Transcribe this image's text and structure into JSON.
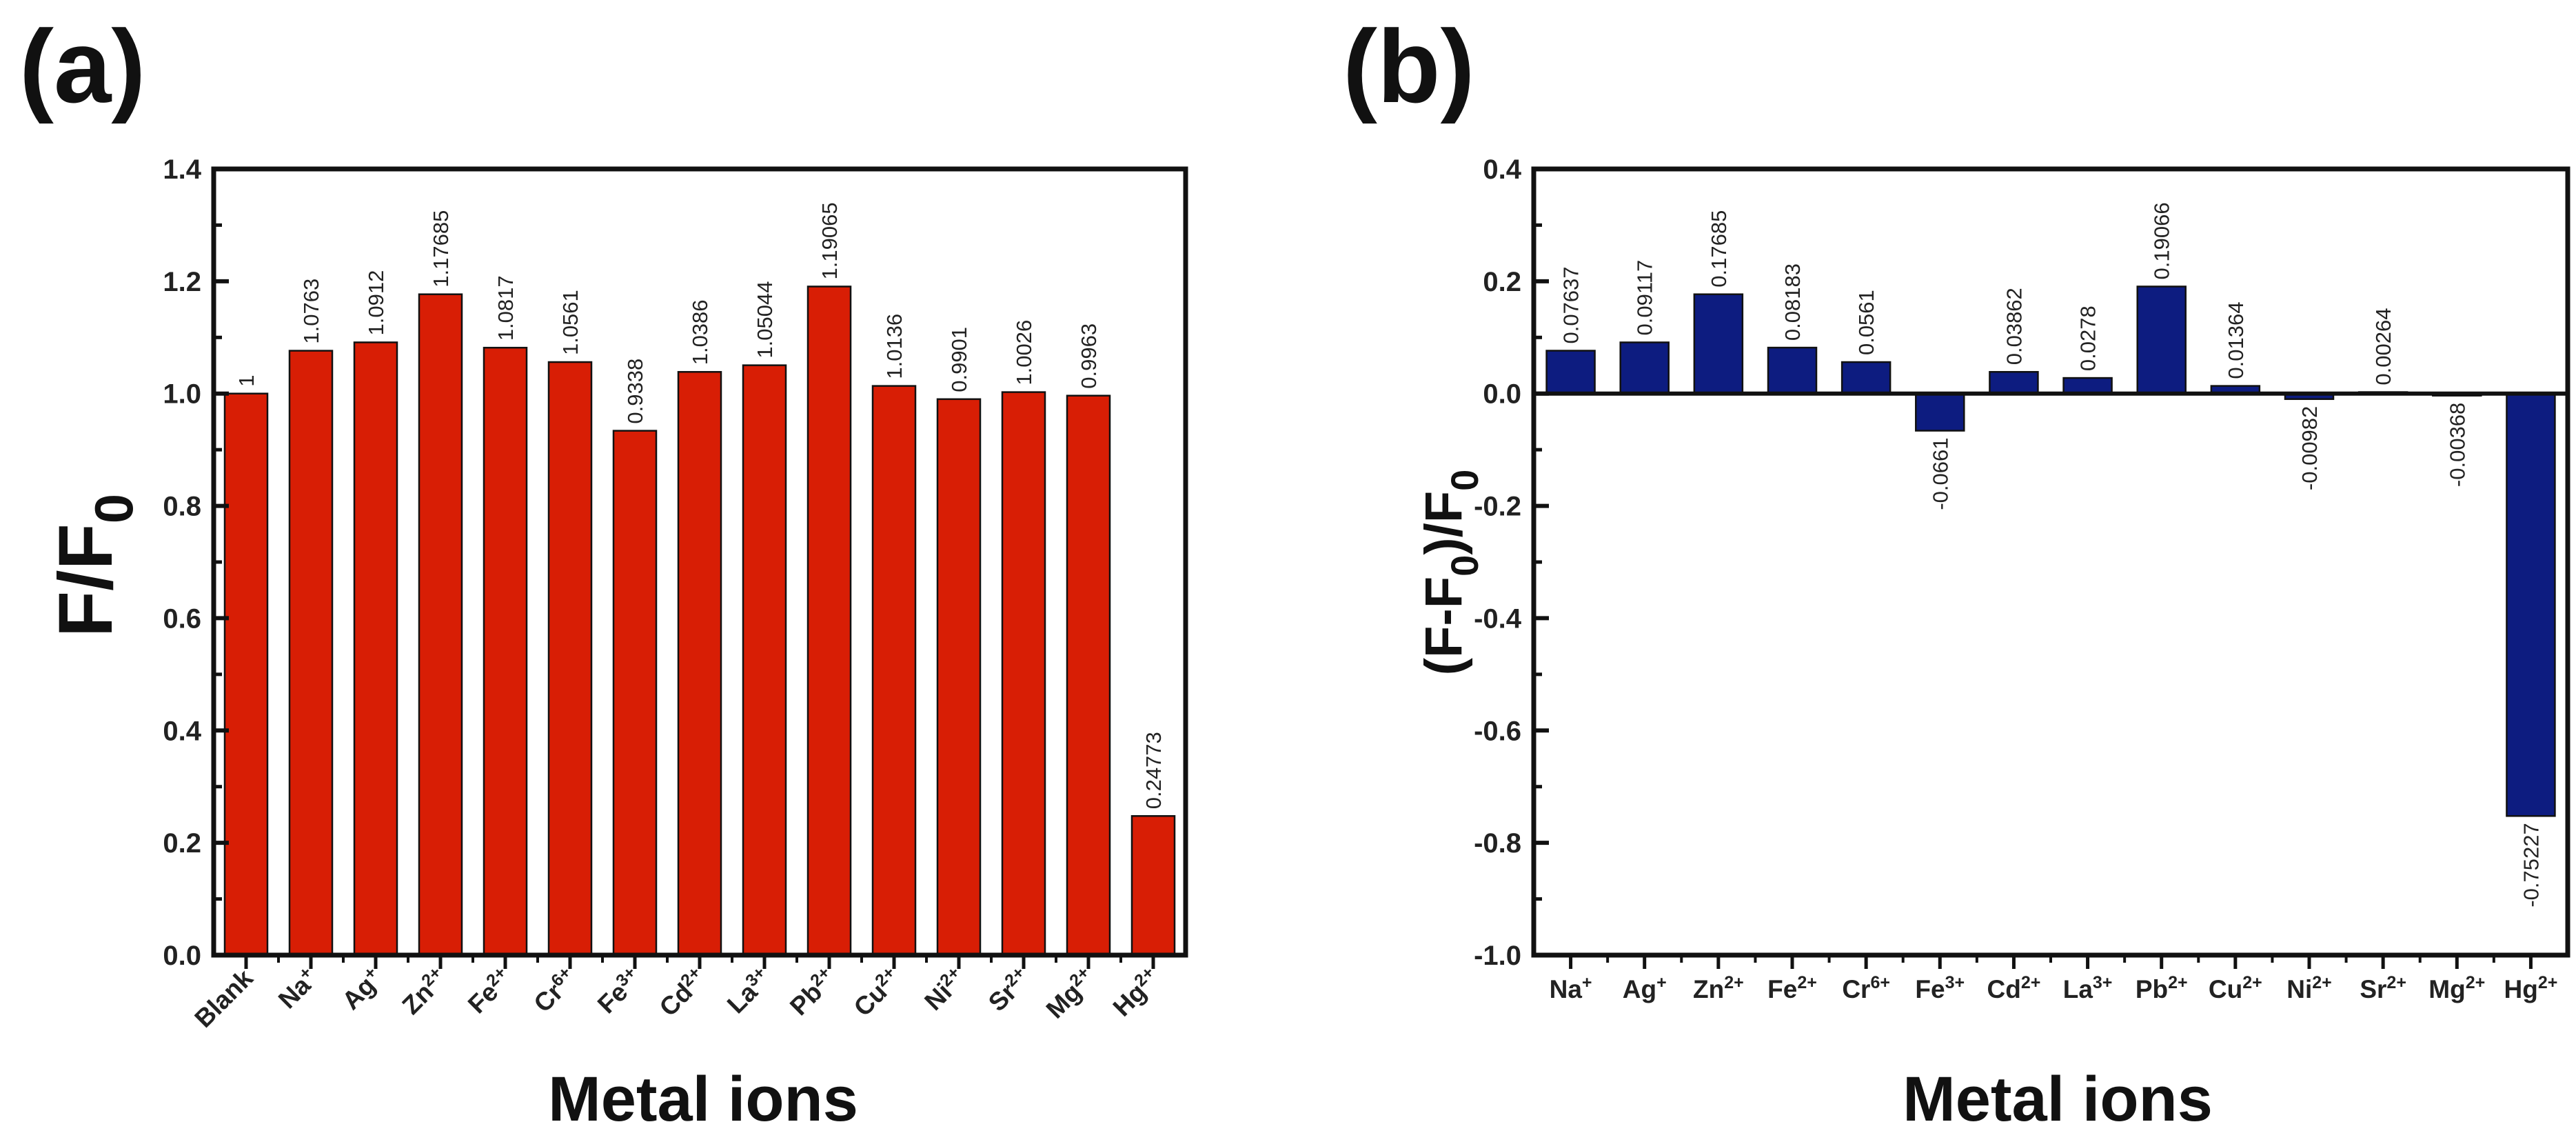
{
  "chart_data": [
    {
      "panel_label": "(a)",
      "type": "bar",
      "color": "#D81E05",
      "categories": [
        {
          "main": "Blank",
          "sup": ""
        },
        {
          "main": "Na",
          "sup": "+"
        },
        {
          "main": "Ag",
          "sup": "+"
        },
        {
          "main": "Zn",
          "sup": "2+"
        },
        {
          "main": "Fe",
          "sup": "2+"
        },
        {
          "main": "Cr",
          "sup": "6+"
        },
        {
          "main": "Fe",
          "sup": "3+"
        },
        {
          "main": "Cd",
          "sup": "2+"
        },
        {
          "main": "La",
          "sup": "3+"
        },
        {
          "main": "Pb",
          "sup": "2+"
        },
        {
          "main": "Cu",
          "sup": "2+"
        },
        {
          "main": "Ni",
          "sup": "2+"
        },
        {
          "main": "Sr",
          "sup": "2+"
        },
        {
          "main": "Mg",
          "sup": "2+"
        },
        {
          "main": "Hg",
          "sup": "2+"
        }
      ],
      "values": [
        1,
        1.0763,
        1.0912,
        1.17685,
        1.0817,
        1.0561,
        0.9338,
        1.0386,
        1.05044,
        1.19065,
        1.0136,
        0.9901,
        1.0026,
        0.9963,
        0.24773
      ],
      "value_labels": [
        "1",
        "1.0763",
        "1.0912",
        "1.17685",
        "1.0817",
        "1.0561",
        "0.9338",
        "1.0386",
        "1.05044",
        "1.19065",
        "1.0136",
        "0.9901",
        "1.0026",
        "0.9963",
        "0.24773"
      ],
      "ylim": [
        0.0,
        1.4
      ],
      "yticks": [
        "0.0",
        "0.2",
        "0.4",
        "0.6",
        "0.8",
        "1.0",
        "1.2",
        "1.4"
      ],
      "ylabel": {
        "main": "F/F",
        "sub": "0"
      },
      "xlabel": "Metal ions"
    },
    {
      "panel_label": "(b)",
      "type": "bar",
      "color": "#0D1C80",
      "categories": [
        {
          "main": "Na",
          "sup": "+"
        },
        {
          "main": "Ag",
          "sup": "+"
        },
        {
          "main": "Zn",
          "sup": "2+"
        },
        {
          "main": "Fe",
          "sup": "2+"
        },
        {
          "main": "Cr",
          "sup": "6+"
        },
        {
          "main": "Fe",
          "sup": "3+"
        },
        {
          "main": "Cd",
          "sup": "2+"
        },
        {
          "main": "La",
          "sup": "3+"
        },
        {
          "main": "Pb",
          "sup": "2+"
        },
        {
          "main": "Cu",
          "sup": "2+"
        },
        {
          "main": "Ni",
          "sup": "2+"
        },
        {
          "main": "Sr",
          "sup": "2+"
        },
        {
          "main": "Mg",
          "sup": "2+"
        },
        {
          "main": "Hg",
          "sup": "2+"
        }
      ],
      "values": [
        0.07637,
        0.09117,
        0.17685,
        0.08183,
        0.0561,
        -0.0661,
        0.03862,
        0.0278,
        0.19066,
        0.01364,
        -0.00982,
        0.00264,
        -0.00368,
        -0.75227
      ],
      "value_labels": [
        "0.07637",
        "0.09117",
        "0.17685",
        "0.08183",
        "0.0561",
        "-0.0661",
        "0.03862",
        "0.0278",
        "0.19066",
        "0.01364",
        "-0.00982",
        "0.00264",
        "-0.00368",
        "-0.75227"
      ],
      "ylim": [
        -1.0,
        0.4
      ],
      "yticks": [
        "-1.0",
        "-0.8",
        "-0.6",
        "-0.4",
        "-0.2",
        "0.0",
        "0.2",
        "0.4"
      ],
      "ylabel": {
        "p1": "(F-F",
        "sub1": "0",
        "p2": ")/F",
        "sub2": "0"
      },
      "xlabel": "Metal ions"
    }
  ]
}
